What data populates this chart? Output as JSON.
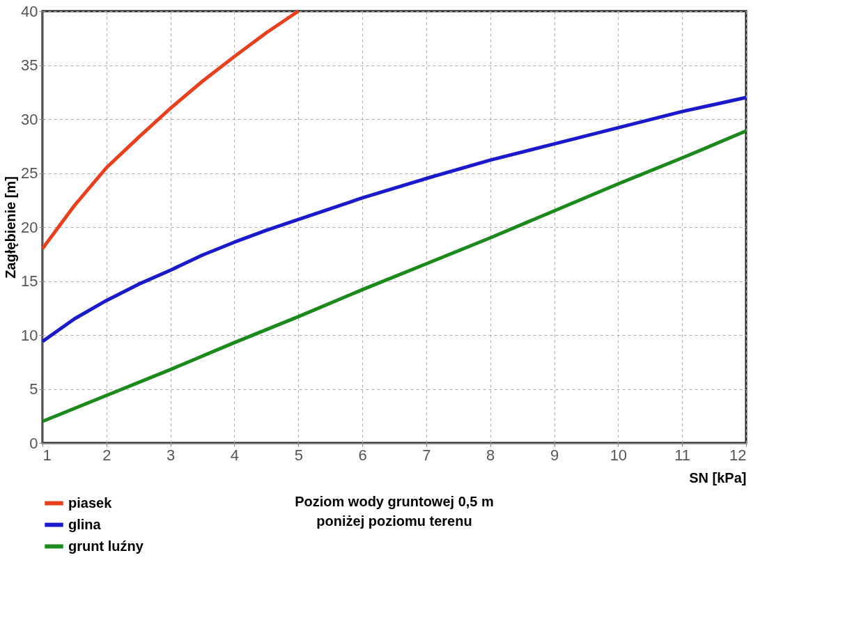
{
  "chart_data": {
    "type": "line",
    "xlabel": "SN [kPa]",
    "ylabel": "Zagłębienie [m]",
    "xlim": [
      1,
      12
    ],
    "xticks": [
      1,
      2,
      3,
      4,
      5,
      6,
      7,
      8,
      9,
      10,
      11,
      12
    ],
    "ylim": [
      0,
      40
    ],
    "yticks": [
      0,
      5,
      10,
      15,
      20,
      25,
      30,
      35,
      40
    ],
    "grid": true,
    "legend": "bottom left",
    "line_style": "solid",
    "series": [
      {
        "name": "piasek",
        "color": "#e8401c",
        "x": [
          1,
          1.5,
          2,
          2.5,
          3,
          3.5,
          4,
          4.5,
          5
        ],
        "values": [
          18,
          22,
          25.5,
          28.3,
          31,
          33.5,
          35.8,
          38,
          40
        ]
      },
      {
        "name": "glina",
        "color": "#1a1acc",
        "x": [
          1,
          1.5,
          2,
          2.5,
          3,
          3.5,
          4,
          4.5,
          5,
          6,
          7,
          8,
          9,
          10,
          11,
          12
        ],
        "values": [
          9.4,
          11.5,
          13.2,
          14.7,
          16,
          17.4,
          18.6,
          19.7,
          20.7,
          22.7,
          24.5,
          26.2,
          27.7,
          29.2,
          30.7,
          32
        ]
      },
      {
        "name": "grunt luźny",
        "color": "#1a8a1a",
        "x": [
          1,
          2,
          3,
          4,
          5,
          6,
          7,
          8,
          9,
          10,
          11,
          12
        ],
        "values": [
          2,
          4.4,
          6.8,
          9.3,
          11.7,
          14.2,
          16.6,
          19,
          21.5,
          24,
          26.4,
          28.9
        ]
      }
    ],
    "annotations": [
      "Poziom wody gruntowej 0,5 m\nponiżej poziomu terenu"
    ]
  }
}
